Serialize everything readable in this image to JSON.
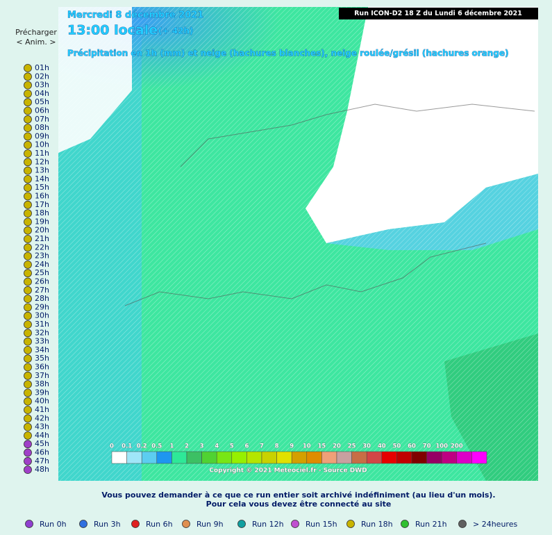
{
  "sidebar": {
    "preload": "Précharger",
    "anim": "< Anim. >",
    "hours": [
      {
        "label": "01h",
        "color": "#c8b400"
      },
      {
        "label": "02h",
        "color": "#c8b400"
      },
      {
        "label": "03h",
        "color": "#c8b400"
      },
      {
        "label": "04h",
        "color": "#c8b400"
      },
      {
        "label": "05h",
        "color": "#c8b400"
      },
      {
        "label": "06h",
        "color": "#c8b400"
      },
      {
        "label": "07h",
        "color": "#c8b400"
      },
      {
        "label": "08h",
        "color": "#c8b400"
      },
      {
        "label": "09h",
        "color": "#c8b400"
      },
      {
        "label": "10h",
        "color": "#c8b400"
      },
      {
        "label": "11h",
        "color": "#c8b400"
      },
      {
        "label": "12h",
        "color": "#c8b400"
      },
      {
        "label": "13h",
        "color": "#c8b400"
      },
      {
        "label": "14h",
        "color": "#c8b400"
      },
      {
        "label": "15h",
        "color": "#c8b400"
      },
      {
        "label": "16h",
        "color": "#c8b400"
      },
      {
        "label": "17h",
        "color": "#c8b400"
      },
      {
        "label": "18h",
        "color": "#c8b400"
      },
      {
        "label": "19h",
        "color": "#c8b400"
      },
      {
        "label": "20h",
        "color": "#c8b400"
      },
      {
        "label": "21h",
        "color": "#c8b400"
      },
      {
        "label": "22h",
        "color": "#c8b400"
      },
      {
        "label": "23h",
        "color": "#c8b400"
      },
      {
        "label": "24h",
        "color": "#c8b400"
      },
      {
        "label": "25h",
        "color": "#c8b400"
      },
      {
        "label": "26h",
        "color": "#c8b400"
      },
      {
        "label": "27h",
        "color": "#c8b400"
      },
      {
        "label": "28h",
        "color": "#c8b400"
      },
      {
        "label": "29h",
        "color": "#c8b400"
      },
      {
        "label": "30h",
        "color": "#c8b400"
      },
      {
        "label": "31h",
        "color": "#c8b400"
      },
      {
        "label": "32h",
        "color": "#c8b400"
      },
      {
        "label": "33h",
        "color": "#c8b400"
      },
      {
        "label": "34h",
        "color": "#c8b400"
      },
      {
        "label": "35h",
        "color": "#c8b400"
      },
      {
        "label": "36h",
        "color": "#c8b400"
      },
      {
        "label": "37h",
        "color": "#c8b400"
      },
      {
        "label": "38h",
        "color": "#c8b400"
      },
      {
        "label": "39h",
        "color": "#c8b400"
      },
      {
        "label": "40h",
        "color": "#c8b400"
      },
      {
        "label": "41h",
        "color": "#c8b400"
      },
      {
        "label": "42h",
        "color": "#c8b400"
      },
      {
        "label": "43h",
        "color": "#c8b400"
      },
      {
        "label": "44h",
        "color": "#c8b400"
      },
      {
        "label": "45h",
        "color": "#a040c8"
      },
      {
        "label": "46h",
        "color": "#a040c8"
      },
      {
        "label": "47h",
        "color": "#a040c8"
      },
      {
        "label": "48h",
        "color": "#a040c8"
      }
    ]
  },
  "map": {
    "date": "Mercredi 8 décembre 2021",
    "time": "13:00 locale",
    "lead": "(+ 42h)",
    "subtitle": "Précipitation en 1h (mm) et neige (hachures blanches), neige roulée/grésil (hachures orange)",
    "run": "Run ICON-D2 18 Z du Lundi 6 décembre 2021",
    "scale": {
      "labels": [
        "0",
        "0.1",
        "0.2",
        "0.5",
        "1",
        "2",
        "3",
        "4",
        "5",
        "6",
        "7",
        "8",
        "9",
        "10",
        "15",
        "20",
        "25",
        "30",
        "40",
        "50",
        "60",
        "70",
        "100",
        "200"
      ],
      "colors": [
        "#ffffff",
        "#a0e6f8",
        "#5ccdf0",
        "#1e96f0",
        "#2ee898",
        "#3cc064",
        "#50d232",
        "#78e614",
        "#96f000",
        "#b4e600",
        "#c8d200",
        "#e1e100",
        "#d4a000",
        "#e08c00",
        "#f0a078",
        "#c8a0a0",
        "#c86e46",
        "#d24646",
        "#e60000",
        "#c00000",
        "#800000",
        "#960064",
        "#be0082",
        "#dc00c8",
        "#ff00ff"
      ]
    },
    "copyright": "Copyright © 2021 Meteociel.fr - Source DWD"
  },
  "footer": {
    "line1": "Vous pouvez demander à ce que ce run entier soit archivé indéfiniment (au lieu d'un mois).",
    "line2": "Pour cela vous devez être connecté au site",
    "runs": [
      {
        "label": "Run 0h",
        "color": "#9040d0"
      },
      {
        "label": "Run 3h",
        "color": "#3070e0"
      },
      {
        "label": "Run 6h",
        "color": "#e02020"
      },
      {
        "label": "Run 9h",
        "color": "#e09050"
      },
      {
        "label": "Run 12h",
        "color": "#10a0a0"
      },
      {
        "label": "Run 15h",
        "color": "#c050d0"
      },
      {
        "label": "Run 18h",
        "color": "#c8b400"
      },
      {
        "label": "Run 21h",
        "color": "#30c030"
      },
      {
        "label": "> 24heures",
        "color": "#606060"
      }
    ]
  }
}
